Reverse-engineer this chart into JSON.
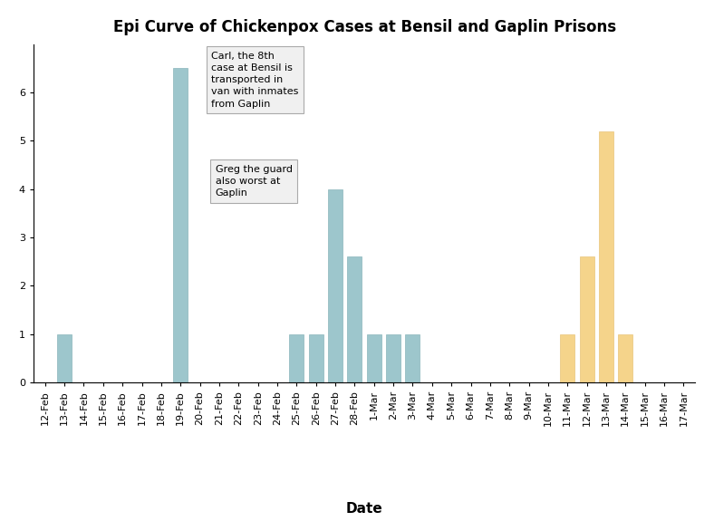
{
  "title": "Epi Curve of Chickenpox Cases at Bensil and Gaplin Prisons",
  "xlabel": "Date",
  "bensil_color": "#9dc6cc",
  "gaplin_color": "#f5d48b",
  "dates": [
    "12-Feb",
    "13-Feb",
    "14-Feb",
    "15-Feb",
    "16-Feb",
    "17-Feb",
    "18-Feb",
    "19-Feb",
    "20-Feb",
    "21-Feb",
    "22-Feb",
    "23-Feb",
    "24-Feb",
    "25-Feb",
    "26-Feb",
    "27-Feb",
    "28-Feb",
    "1-Mar",
    "2-Mar",
    "3-Mar",
    "4-Mar",
    "5-Mar",
    "6-Mar",
    "7-Mar",
    "8-Mar",
    "9-Mar",
    "10-Mar",
    "11-Mar",
    "12-Mar",
    "13-Mar",
    "14-Mar",
    "15-Mar",
    "16-Mar",
    "17-Mar"
  ],
  "bensil_values": [
    0,
    1,
    0,
    0,
    0,
    0,
    0,
    6.5,
    0,
    0,
    0,
    0,
    0,
    1,
    1,
    4,
    2.6,
    1,
    1,
    1,
    0,
    0,
    0,
    0,
    0,
    0,
    0,
    0,
    0,
    0,
    0,
    0,
    0,
    0
  ],
  "gaplin_values": [
    0,
    0,
    0,
    0,
    0,
    0,
    0,
    0,
    0,
    0,
    0,
    0,
    0,
    0,
    0,
    0,
    0,
    0,
    0,
    0,
    0,
    0,
    0,
    0,
    0,
    0,
    0,
    1,
    2.6,
    5.2,
    1,
    0,
    0,
    0
  ],
  "annotation1_text": "Carl, the 8th\ncase at Bensil is\ntransported in\nvan with inmates\nfrom Gaplin",
  "annotation2_text": "Greg the guard\nalso worst at\nGaplin",
  "arrow1_date_idx": 8,
  "arrow2_date_idx": 15,
  "ylim": [
    0,
    7
  ],
  "yticks": [
    0,
    1,
    2,
    3,
    4,
    5,
    6
  ],
  "background_color": "#ffffff",
  "title_fontsize": 12,
  "axis_label_fontsize": 11,
  "tick_fontsize": 8,
  "legend_fontsize": 9
}
